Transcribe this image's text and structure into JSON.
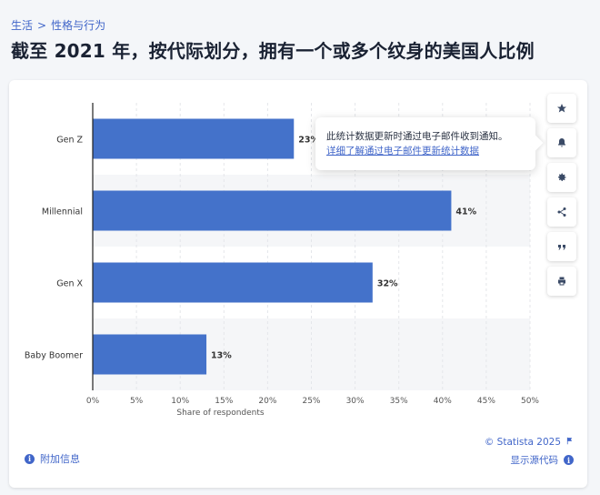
{
  "breadcrumb": {
    "items": [
      "生活",
      "性格与行为"
    ],
    "separator": ">"
  },
  "title": "截至 2021 年，按代际划分，拥有一个或多个纹身的美国人比例",
  "tooltip": {
    "text": "此统计数据更新时通过电子邮件收到通知。",
    "link": "详细了解通过电子邮件更新统计数据"
  },
  "toolbar": {
    "icons": [
      "star-icon",
      "bell-icon",
      "gear-icon",
      "share-icon",
      "quote-icon",
      "print-icon"
    ]
  },
  "footer": {
    "additional_info": "附加信息",
    "copyright": "© Statista 2025",
    "show_source": "显示源代码"
  },
  "colors": {
    "bar": "#4472ca",
    "accent": "#4166c9"
  },
  "chart_data": {
    "type": "bar",
    "orientation": "horizontal",
    "categories": [
      "Gen Z",
      "Millennial",
      "Gen X",
      "Baby Boomer"
    ],
    "values": [
      23,
      41,
      32,
      13
    ],
    "value_labels": [
      "23%",
      "41%",
      "32%",
      "13%"
    ],
    "xlabel": "Share of respondents",
    "xlim": [
      0,
      50
    ],
    "x_ticks": [
      0,
      5,
      10,
      15,
      20,
      25,
      30,
      35,
      40,
      45,
      50
    ],
    "tick_suffix": "%",
    "grid": true
  }
}
